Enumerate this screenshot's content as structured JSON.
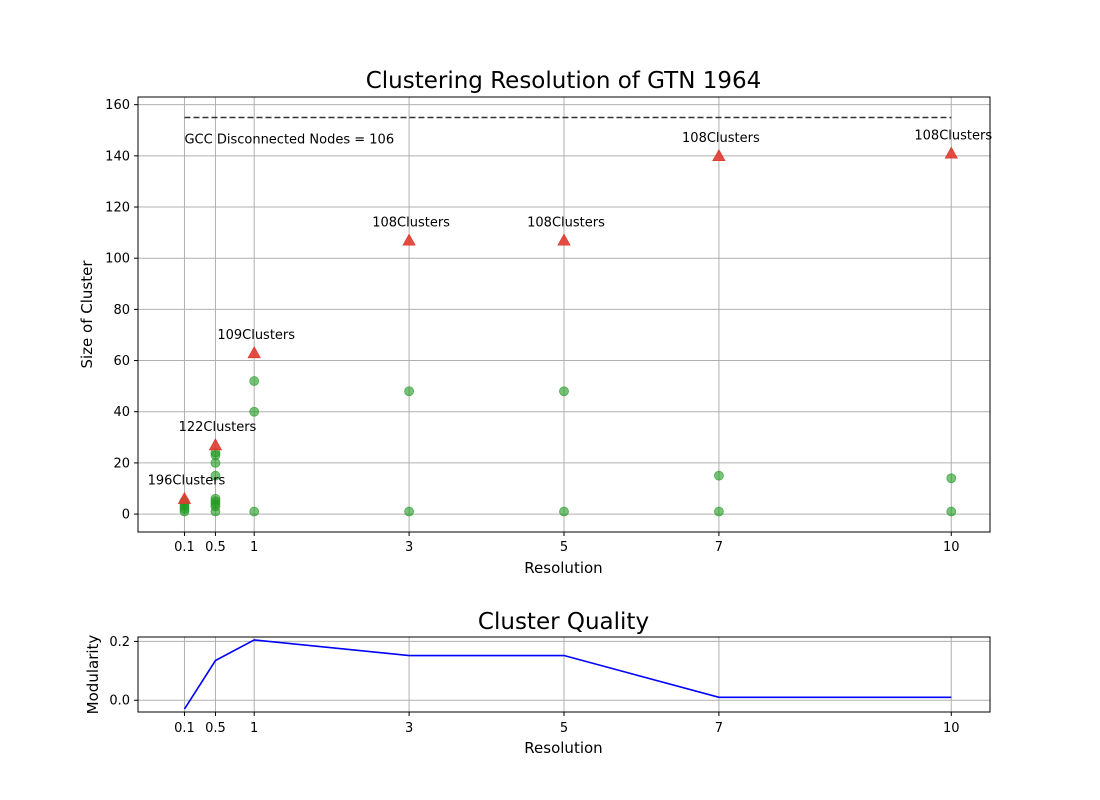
{
  "chart_data": [
    {
      "type": "scatter",
      "title": "Clustering Resolution of GTN 1964",
      "xlabel": "Resolution",
      "ylabel": "Size of Cluster",
      "xlim": [
        -0.5,
        10.5
      ],
      "ylim": [
        -7,
        163
      ],
      "grid": true,
      "x_ticks": [
        0.1,
        0.5,
        1,
        3,
        5,
        7,
        10
      ],
      "x_tick_labels": [
        "0.1",
        "0.5",
        "1",
        "3",
        "5",
        "7",
        "10"
      ],
      "y_ticks": [
        0,
        20,
        40,
        60,
        80,
        100,
        120,
        140,
        160
      ],
      "y_tick_labels": [
        "0",
        "20",
        "40",
        "60",
        "80",
        "100",
        "120",
        "140",
        "160"
      ],
      "reference_line": {
        "y": 155,
        "x_from": 0.1,
        "x_to": 10,
        "style": "dashed",
        "color": "#333333"
      },
      "reference_label": "GCC  Disconnected Nodes = 106",
      "largest_cluster": {
        "marker": "triangle",
        "color": "#e03a2f",
        "points": [
          {
            "x": 0.1,
            "y": 6
          },
          {
            "x": 0.5,
            "y": 27
          },
          {
            "x": 1,
            "y": 63
          },
          {
            "x": 3,
            "y": 107
          },
          {
            "x": 5,
            "y": 107
          },
          {
            "x": 7,
            "y": 140
          },
          {
            "x": 10,
            "y": 141
          }
        ]
      },
      "other_clusters": {
        "marker": "circle",
        "color": "#1f9a1f",
        "points": [
          {
            "x": 0.1,
            "y": 5
          },
          {
            "x": 0.1,
            "y": 4
          },
          {
            "x": 0.1,
            "y": 3
          },
          {
            "x": 0.1,
            "y": 2
          },
          {
            "x": 0.1,
            "y": 1
          },
          {
            "x": 0.5,
            "y": 24
          },
          {
            "x": 0.5,
            "y": 23
          },
          {
            "x": 0.5,
            "y": 20
          },
          {
            "x": 0.5,
            "y": 15
          },
          {
            "x": 0.5,
            "y": 6
          },
          {
            "x": 0.5,
            "y": 5
          },
          {
            "x": 0.5,
            "y": 4
          },
          {
            "x": 0.5,
            "y": 3
          },
          {
            "x": 0.5,
            "y": 1
          },
          {
            "x": 1,
            "y": 52
          },
          {
            "x": 1,
            "y": 40
          },
          {
            "x": 1,
            "y": 1
          },
          {
            "x": 3,
            "y": 48
          },
          {
            "x": 3,
            "y": 1
          },
          {
            "x": 5,
            "y": 48
          },
          {
            "x": 5,
            "y": 1
          },
          {
            "x": 7,
            "y": 15
          },
          {
            "x": 7,
            "y": 1
          },
          {
            "x": 10,
            "y": 14
          },
          {
            "x": 10,
            "y": 1
          }
        ]
      },
      "annotations": [
        {
          "x": 0.1,
          "y": 6,
          "text": "196Clusters"
        },
        {
          "x": 0.5,
          "y": 27,
          "text": "122Clusters"
        },
        {
          "x": 1,
          "y": 63,
          "text": "109Clusters"
        },
        {
          "x": 3,
          "y": 107,
          "text": "108Clusters"
        },
        {
          "x": 5,
          "y": 107,
          "text": "108Clusters"
        },
        {
          "x": 7,
          "y": 140,
          "text": "108Clusters"
        },
        {
          "x": 10,
          "y": 141,
          "text": "108Clusters"
        }
      ]
    },
    {
      "type": "line",
      "title": "Cluster Quality",
      "xlabel": "Resolution",
      "ylabel": "Modularity",
      "xlim": [
        -0.5,
        10.5
      ],
      "ylim": [
        -0.04,
        0.215
      ],
      "grid": true,
      "color": "#0000ff",
      "x_ticks": [
        0.1,
        0.5,
        1,
        3,
        5,
        7,
        10
      ],
      "x_tick_labels": [
        "0.1",
        "0.5",
        "1",
        "3",
        "5",
        "7",
        "10"
      ],
      "y_ticks": [
        0.0,
        0.2
      ],
      "y_tick_labels": [
        "0.0",
        "0.2"
      ],
      "x": [
        0.1,
        0.5,
        1,
        3,
        5,
        7,
        10
      ],
      "y": [
        -0.03,
        0.135,
        0.205,
        0.152,
        0.152,
        0.01,
        0.01
      ]
    }
  ]
}
